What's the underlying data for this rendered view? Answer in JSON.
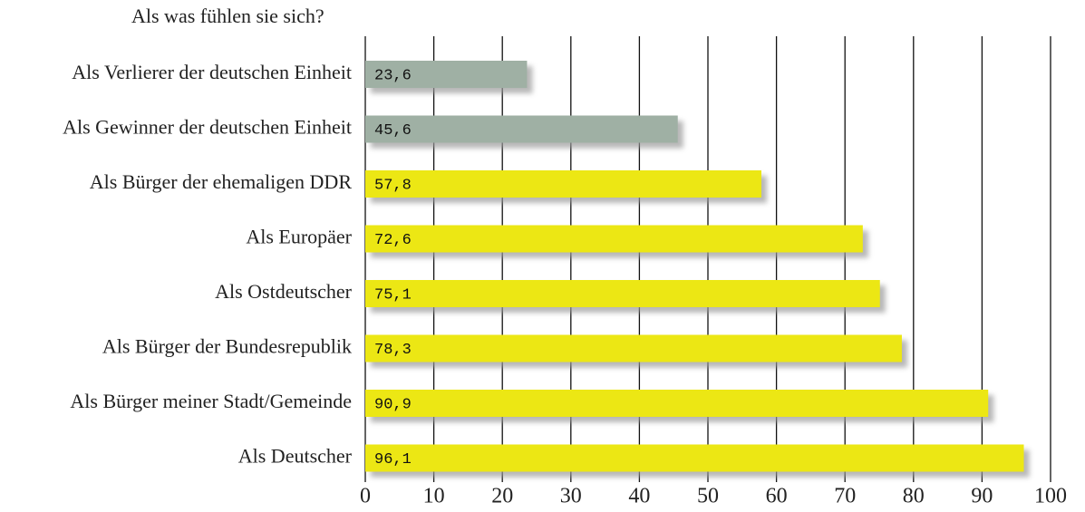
{
  "chart_data": {
    "type": "barh",
    "title": "Als was fühlen sie sich?",
    "categories": [
      "Als Verlierer der deutschen Einheit",
      "Als Gewinner der deutschen Einheit",
      "Als Bürger der ehemaligen DDR",
      "Als Europäer",
      "Als Ostdeutscher",
      "Als Bürger der Bundesrepublik",
      "Als Bürger meiner Stadt/Gemeinde",
      "Als Deutscher"
    ],
    "values": [
      23.6,
      45.6,
      57.8,
      72.6,
      75.1,
      78.3,
      90.9,
      96.1
    ],
    "value_labels": [
      "23,6",
      "45,6",
      "57,8",
      "72,6",
      "75,1",
      "78,3",
      "90,9",
      "96,1"
    ],
    "colors": [
      "#9fb0a4",
      "#9fb0a4",
      "#ece714",
      "#ece714",
      "#ece714",
      "#ece714",
      "#ece714",
      "#ece714"
    ],
    "xlim": [
      0,
      100
    ],
    "xticks": [
      0,
      10,
      20,
      30,
      40,
      50,
      60,
      70,
      80,
      90,
      100
    ],
    "grid": true
  }
}
